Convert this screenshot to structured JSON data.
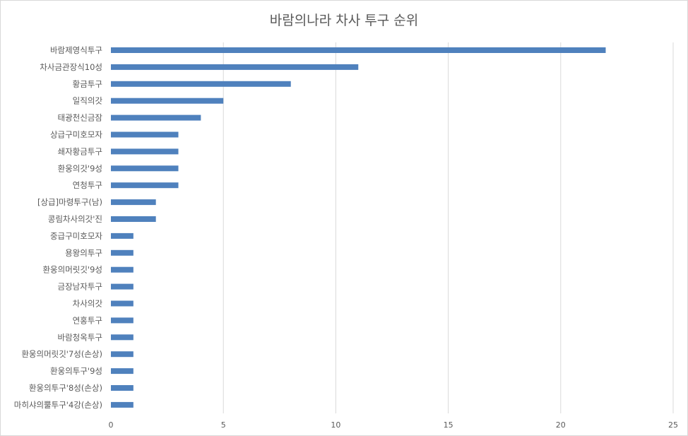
{
  "chart_data": {
    "type": "bar",
    "orientation": "horizontal",
    "title": "바람의나라 차사 투구 순위",
    "categories": [
      "바람제영식투구",
      "차사금관장식10성",
      "황금투구",
      "일직의갓",
      "태광천신금잠",
      "상급구미호모자",
      "쇄자황금투구",
      "환웅의갓'9성",
      "연청투구",
      "[상급]마령투구(남)",
      "콩림차사의갓'진",
      "중급구미호모자",
      "용왕의투구",
      "환웅의머릿깃'9성",
      "금장남자투구",
      "차사의갓",
      "연홍투구",
      "바람청옥투구",
      "환웅의머릿깃'7성(손상)",
      "환웅의투구'9성",
      "환웅의투구'8성(손상)",
      "마히샤의뿔투구'4강(손상)"
    ],
    "values": [
      22,
      11,
      8,
      5,
      4,
      3,
      3,
      3,
      3,
      2,
      2,
      1,
      1,
      1,
      1,
      1,
      1,
      1,
      1,
      1,
      1,
      1
    ],
    "xlim": [
      0,
      25
    ],
    "x_ticks": [
      "0",
      "5",
      "10",
      "15",
      "20",
      "25"
    ],
    "bar_color": "#4f81bd",
    "grid": true,
    "legend": "none"
  }
}
